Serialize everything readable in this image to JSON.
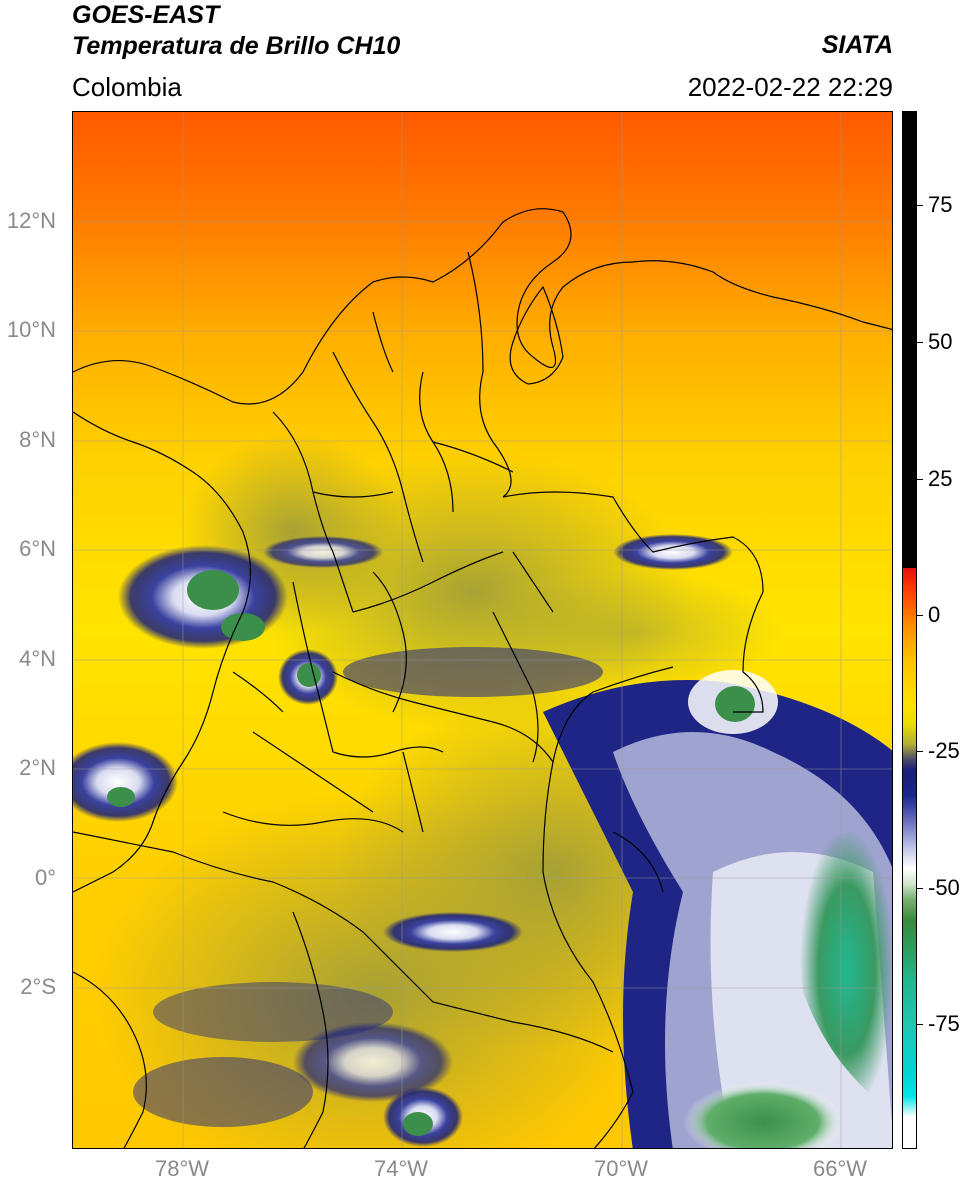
{
  "header": {
    "title_line1": "GOES-EAST",
    "title_line2": "Temperatura de Brillo CH10",
    "region": "Colombia",
    "source": "SIATA",
    "datetime": "2022-02-22 22:29"
  },
  "map": {
    "lat_ticks": [
      "12°N",
      "10°N",
      "8°N",
      "6°N",
      "4°N",
      "2°N",
      "0°",
      "2°S"
    ],
    "lon_ticks": [
      "78°W",
      "74°W",
      "70°W",
      "66°W"
    ]
  },
  "colorbar": {
    "tick_labels": [
      "75",
      "50",
      "25",
      "0",
      "-25",
      "-50",
      "-75"
    ],
    "colors": {
      "warm": "#ff2a00",
      "orange": "#ff8c00",
      "yellow": "#ffe100",
      "olive": "#b3b035",
      "navy": "#1a1f7a",
      "white": "#ffffff",
      "green": "#3a8a3a",
      "teal": "#20c0a0",
      "cyan": "#00e5e5",
      "above_range": "#000000"
    }
  }
}
